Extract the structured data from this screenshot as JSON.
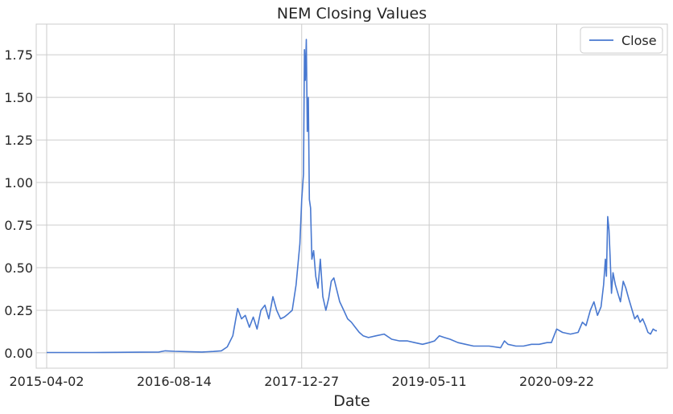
{
  "chart_data": {
    "type": "line",
    "title": "NEM Closing Values",
    "xlabel": "Date",
    "ylabel": "",
    "xlim": [
      "2015-02-20",
      "2021-11-30"
    ],
    "ylim": [
      -0.09,
      1.93
    ],
    "grid": true,
    "legend_position": "top-right",
    "colors": {
      "line": "#4878d0",
      "grid": "#cccccc",
      "axes_edge": "#cccccc",
      "text": "#262626"
    },
    "x_tick_labels": [
      "2015-04-02",
      "2016-08-14",
      "2017-12-27",
      "2019-05-11",
      "2020-09-22"
    ],
    "y_tick_values": [
      0.0,
      0.25,
      0.5,
      0.75,
      1.0,
      1.25,
      1.5,
      1.75
    ],
    "y_tick_labels": [
      "0.00",
      "0.25",
      "0.50",
      "0.75",
      "1.00",
      "1.25",
      "1.50",
      "1.75"
    ],
    "series": [
      {
        "name": "Close",
        "x": [
          "2015-04-02",
          "2015-07-01",
          "2015-10-01",
          "2016-01-01",
          "2016-04-01",
          "2016-06-15",
          "2016-07-10",
          "2016-08-14",
          "2016-10-01",
          "2016-12-01",
          "2017-01-15",
          "2017-02-15",
          "2017-03-10",
          "2017-04-01",
          "2017-04-20",
          "2017-05-05",
          "2017-05-20",
          "2017-06-05",
          "2017-06-20",
          "2017-07-05",
          "2017-07-20",
          "2017-08-05",
          "2017-08-20",
          "2017-09-05",
          "2017-09-20",
          "2017-10-05",
          "2017-10-20",
          "2017-11-05",
          "2017-11-20",
          "2017-12-05",
          "2017-12-20",
          "2017-12-27",
          "2018-01-03",
          "2018-01-07",
          "2018-01-10",
          "2018-01-14",
          "2018-01-18",
          "2018-01-22",
          "2018-01-26",
          "2018-01-31",
          "2018-02-05",
          "2018-02-12",
          "2018-02-20",
          "2018-03-01",
          "2018-03-10",
          "2018-03-20",
          "2018-04-01",
          "2018-04-12",
          "2018-04-22",
          "2018-05-02",
          "2018-05-12",
          "2018-05-25",
          "2018-06-10",
          "2018-06-25",
          "2018-07-10",
          "2018-07-25",
          "2018-08-10",
          "2018-08-25",
          "2018-09-15",
          "2018-10-15",
          "2018-11-15",
          "2018-12-15",
          "2019-01-15",
          "2019-02-15",
          "2019-03-15",
          "2019-04-15",
          "2019-05-11",
          "2019-06-01",
          "2019-06-20",
          "2019-07-10",
          "2019-08-01",
          "2019-09-01",
          "2019-10-01",
          "2019-11-01",
          "2019-12-01",
          "2020-01-01",
          "2020-02-15",
          "2020-03-01",
          "2020-03-15",
          "2020-04-15",
          "2020-05-15",
          "2020-06-15",
          "2020-07-15",
          "2020-08-15",
          "2020-09-01",
          "2020-09-22",
          "2020-10-15",
          "2020-11-15",
          "2020-12-15",
          "2021-01-01",
          "2021-01-15",
          "2021-02-01",
          "2021-02-15",
          "2021-03-01",
          "2021-03-15",
          "2021-03-25",
          "2021-04-01",
          "2021-04-05",
          "2021-04-10",
          "2021-04-15",
          "2021-04-20",
          "2021-04-25",
          "2021-05-01",
          "2021-05-10",
          "2021-05-20",
          "2021-05-30",
          "2021-06-10",
          "2021-06-20",
          "2021-07-01",
          "2021-07-15",
          "2021-07-25",
          "2021-08-05",
          "2021-08-15",
          "2021-08-25",
          "2021-09-05",
          "2021-09-15",
          "2021-09-25",
          "2021-10-05",
          "2021-10-15",
          "2021-10-20"
        ],
        "values": [
          0.002,
          0.002,
          0.002,
          0.003,
          0.004,
          0.005,
          0.012,
          0.009,
          0.007,
          0.005,
          0.008,
          0.012,
          0.035,
          0.1,
          0.26,
          0.2,
          0.22,
          0.15,
          0.21,
          0.14,
          0.25,
          0.28,
          0.2,
          0.33,
          0.25,
          0.2,
          0.21,
          0.23,
          0.25,
          0.4,
          0.64,
          0.9,
          1.05,
          1.78,
          1.6,
          1.84,
          1.3,
          1.5,
          0.9,
          0.85,
          0.55,
          0.6,
          0.45,
          0.38,
          0.55,
          0.33,
          0.25,
          0.32,
          0.42,
          0.44,
          0.38,
          0.3,
          0.25,
          0.2,
          0.18,
          0.15,
          0.12,
          0.1,
          0.09,
          0.1,
          0.11,
          0.08,
          0.07,
          0.07,
          0.06,
          0.05,
          0.06,
          0.07,
          0.1,
          0.09,
          0.08,
          0.06,
          0.05,
          0.04,
          0.04,
          0.04,
          0.03,
          0.07,
          0.05,
          0.04,
          0.04,
          0.05,
          0.05,
          0.06,
          0.06,
          0.14,
          0.12,
          0.11,
          0.12,
          0.18,
          0.16,
          0.25,
          0.3,
          0.22,
          0.27,
          0.4,
          0.55,
          0.45,
          0.8,
          0.72,
          0.55,
          0.35,
          0.47,
          0.4,
          0.35,
          0.3,
          0.42,
          0.38,
          0.32,
          0.25,
          0.2,
          0.22,
          0.18,
          0.2,
          0.16,
          0.12,
          0.11,
          0.14,
          0.13,
          0.13
        ]
      }
    ]
  }
}
